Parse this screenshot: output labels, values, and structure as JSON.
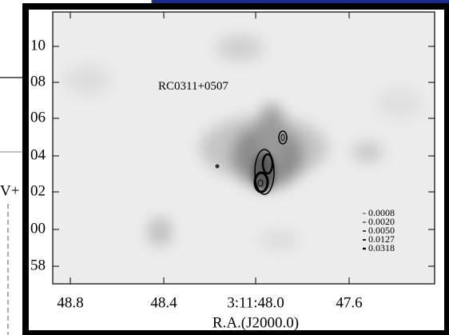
{
  "figure": {
    "source_label": "RC0311+0507",
    "x_axis_label": "R.A.(J2000.0)",
    "x_ticks": [
      "48.8",
      "48.4",
      "3:11:48.0",
      "47.6"
    ],
    "y_ticks": [
      "10",
      "08",
      "06",
      "04",
      "02",
      "00",
      "58"
    ],
    "left_fragment": "V+",
    "contour_levels": [
      "0.0008",
      "0.0020",
      "0.0050",
      "0.0127",
      "0.0318"
    ]
  }
}
